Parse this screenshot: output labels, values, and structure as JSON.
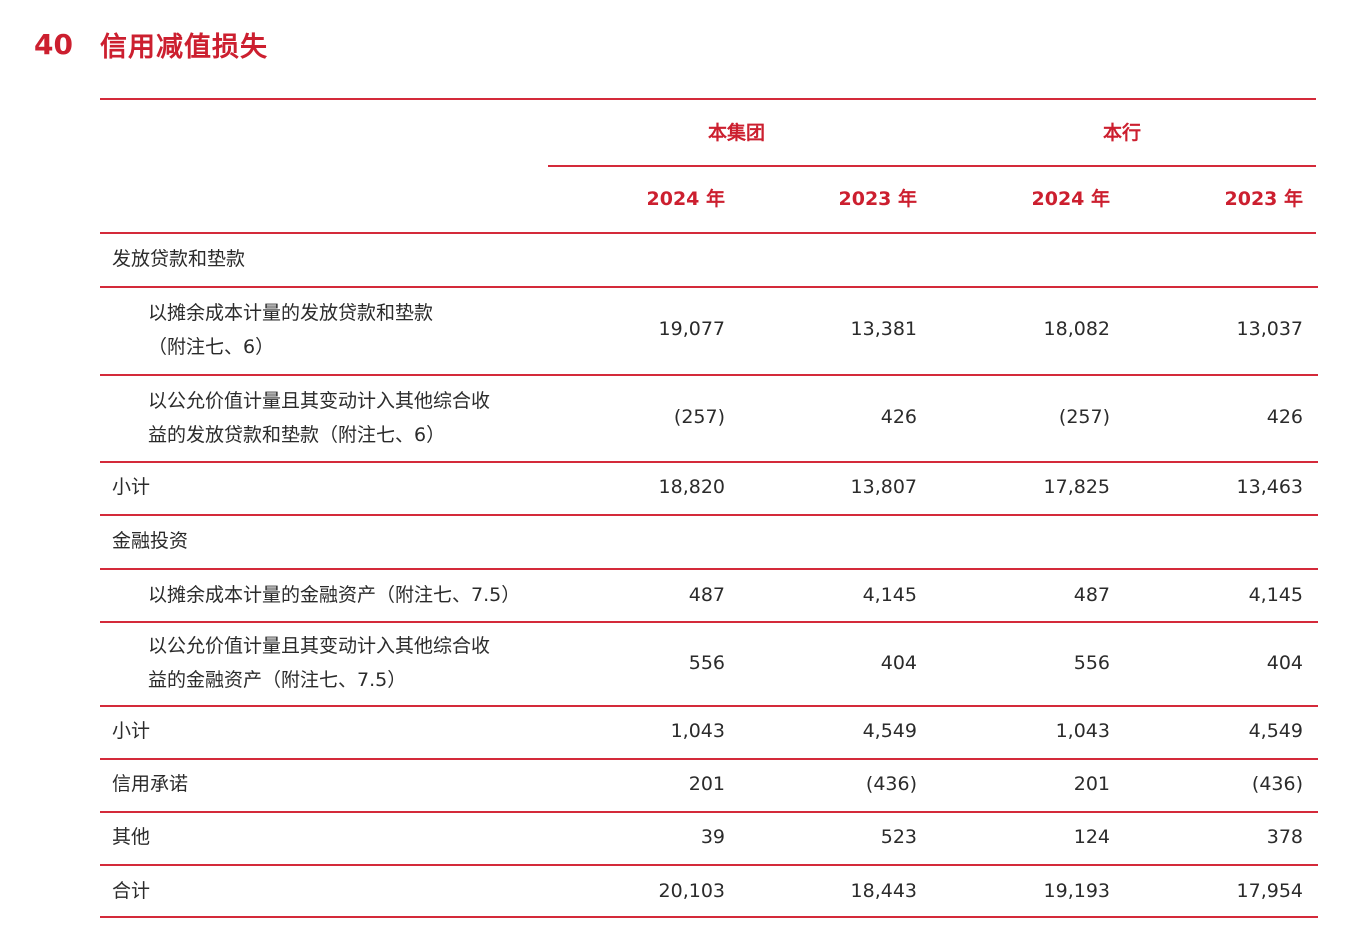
{
  "note": {
    "number": "40",
    "title": "信用减值损失"
  },
  "table": {
    "groups": [
      "本集团",
      "本行"
    ],
    "years": [
      "2024 年",
      "2023 年",
      "2024 年",
      "2023 年"
    ],
    "rows": [
      {
        "label": "发放贷款和垫款",
        "values": [
          "",
          "",
          "",
          ""
        ]
      },
      {
        "label": "以摊余成本计量的发放贷款和垫款",
        "label2": "（附注七、6）",
        "values": [
          "19,077",
          "13,381",
          "18,082",
          "13,037"
        ]
      },
      {
        "label": "以公允价值计量且其变动计入其他综合收",
        "label2": "益的发放贷款和垫款（附注七、6）",
        "values": [
          "(257)",
          "426",
          "(257)",
          "426"
        ]
      },
      {
        "label": "小计",
        "values": [
          "18,820",
          "13,807",
          "17,825",
          "13,463"
        ]
      },
      {
        "label": "金融投资",
        "values": [
          "",
          "",
          "",
          ""
        ]
      },
      {
        "label": "以摊余成本计量的金融资产（附注七、7.5）",
        "values": [
          "487",
          "4,145",
          "487",
          "4,145"
        ]
      },
      {
        "label": "以公允价值计量且其变动计入其他综合收",
        "label2": "益的金融资产（附注七、7.5）",
        "values": [
          "556",
          "404",
          "556",
          "404"
        ]
      },
      {
        "label": "小计",
        "values": [
          "1,043",
          "4,549",
          "1,043",
          "4,549"
        ]
      },
      {
        "label": "信用承诺",
        "values": [
          "201",
          "(436)",
          "201",
          "(436)"
        ]
      },
      {
        "label": "其他",
        "values": [
          "39",
          "523",
          "124",
          "378"
        ]
      },
      {
        "label": "合计",
        "values": [
          "20,103",
          "18,443",
          "19,193",
          "17,954"
        ]
      }
    ]
  },
  "colors": {
    "accent": "#cc1f2f",
    "text": "#2b2b2b"
  }
}
